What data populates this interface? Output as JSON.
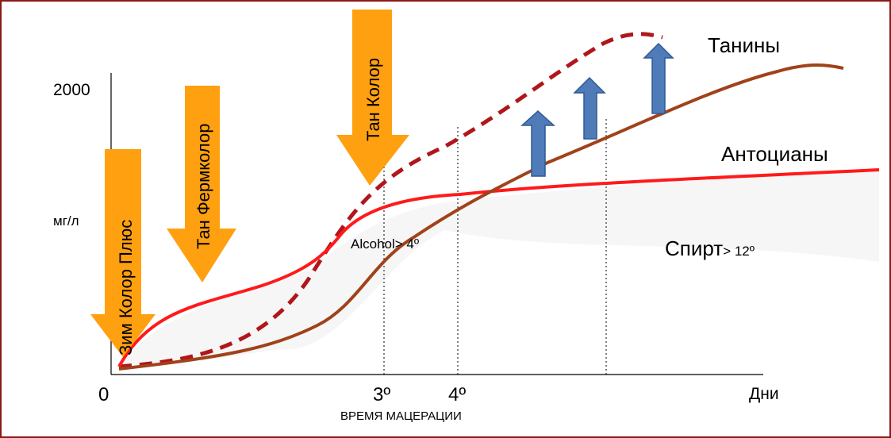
{
  "border_color": "#8B1A1A",
  "colors": {
    "anthocyanins": "#FF1A1A",
    "tannins": "#A0421A",
    "tannins_dashed": "#B0161B",
    "enzyme_arrow": "#FFA010",
    "blue_arrow": "#4F7BB9",
    "blue_arrow_stroke": "#2E5A94"
  },
  "y_axis": {
    "label": "мг/л",
    "max_tick": "2000"
  },
  "x_axis": {
    "origin": "0",
    "unit": "Дни",
    "caption": "ВРЕМЯ МАЦЕРАЦИИ",
    "ticks": [
      "3º",
      "4º"
    ]
  },
  "series": {
    "tannins": "Танины",
    "anthocyanins": "Антоцианы"
  },
  "annotations": {
    "alcohol_early": "Alcohol> 4º",
    "alcohol_late_main": "Спирт",
    "alcohol_late_suffix": "> 12º"
  },
  "products": [
    "Зим Колор Плюс",
    "Тан Фермколор",
    "Тан Колор"
  ],
  "blue_arrows_count": 3
}
